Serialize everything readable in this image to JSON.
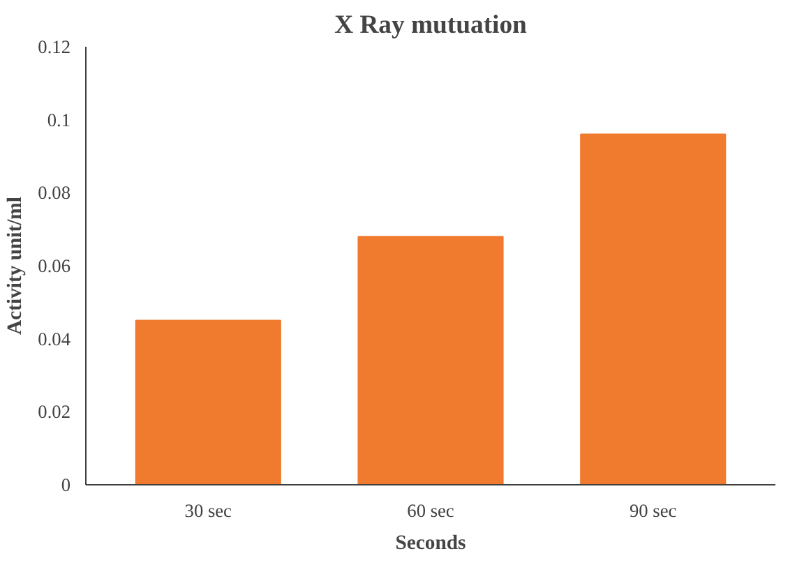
{
  "chart_data": {
    "type": "bar",
    "title": "X Ray mutuation",
    "xlabel": "Seconds",
    "ylabel": "Activity unit/ml",
    "categories": [
      "30 sec",
      "60 sec",
      "90 sec"
    ],
    "values": [
      0.045,
      0.068,
      0.096
    ],
    "color": "#f07a2e",
    "ylim": [
      0,
      0.12
    ],
    "yticks": [
      0,
      0.02,
      0.04,
      0.06,
      0.08,
      {
        "value": 0.1,
        "label": "0.1"
      },
      0.12
    ],
    "grid": false
  }
}
